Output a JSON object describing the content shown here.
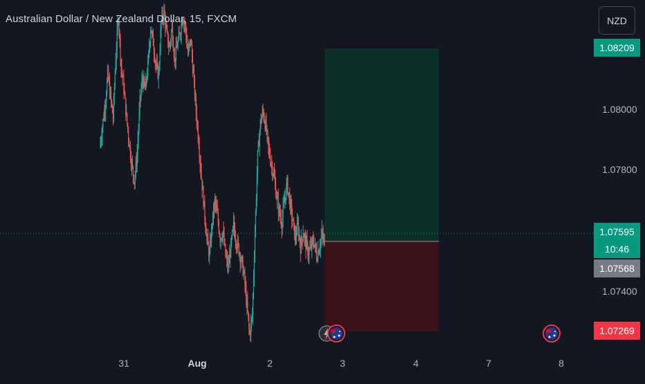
{
  "header": {
    "title": "Australian Dollar / New Zealand Dollar, 15, FXCM",
    "currency_button": "NZD"
  },
  "price_labels": {
    "target": "1.08209",
    "current_price": "1.07595",
    "countdown": "10:46",
    "entry": "1.07568",
    "stop": "1.07269"
  },
  "colors": {
    "background": "#131722",
    "up_candle": "#26a69a",
    "down_candle": "#ef5350",
    "profit_zone": "#0d2f29",
    "loss_zone": "#3a1218",
    "target_label": "#089981",
    "current_label": "#089981",
    "entry_label": "#787b86",
    "stop_label": "#f23645"
  },
  "icons": {
    "event_lightning": "lightning-icon",
    "event_flag_1": "australia-flag-icon",
    "event_flag_2": "australia-flag-icon"
  },
  "chart_data": {
    "type": "candlestick",
    "title": "Australian Dollar / New Zealand Dollar, 15, FXCM",
    "ylim": [
      1.0719,
      1.084
    ],
    "y_ticks": [
      "1.08000",
      "1.07800",
      "1.07400"
    ],
    "x_ticks": [
      "31",
      "Aug",
      "2",
      "3",
      "4",
      "7",
      "8"
    ],
    "grid": false,
    "position_tool": {
      "type": "long",
      "entry": 1.07568,
      "target": 1.08209,
      "stop": 1.07269
    },
    "current_price": 1.07595,
    "price_path": [
      1.0788,
      1.0795,
      1.0802,
      1.0812,
      1.0805,
      1.0798,
      1.0818,
      1.0832,
      1.0815,
      1.0808,
      1.0798,
      1.079,
      1.0782,
      1.0777,
      1.0786,
      1.0803,
      1.0811,
      1.0807,
      1.0815,
      1.0828,
      1.0823,
      1.0815,
      1.0812,
      1.083,
      1.0833,
      1.0826,
      1.0821,
      1.0828,
      1.0817,
      1.0822,
      1.0826,
      1.0832,
      1.0828,
      1.0819,
      1.0824,
      1.0812,
      1.08,
      1.079,
      1.0778,
      1.0768,
      1.0758,
      1.0752,
      1.0763,
      1.077,
      1.0765,
      1.0758,
      1.076,
      1.0752,
      1.0748,
      1.0755,
      1.0762,
      1.0757,
      1.0754,
      1.075,
      1.0745,
      1.0735,
      1.0726,
      1.0732,
      1.076,
      1.0785,
      1.0796,
      1.08,
      1.0795,
      1.0788,
      1.0783,
      1.0779,
      1.0772,
      1.0767,
      1.0763,
      1.077,
      1.0776,
      1.077,
      1.0764,
      1.0758,
      1.0762,
      1.0755,
      1.076,
      1.0756,
      1.0753,
      1.0755,
      1.0757,
      1.0752,
      1.0755,
      1.0759,
      1.0756
    ]
  }
}
